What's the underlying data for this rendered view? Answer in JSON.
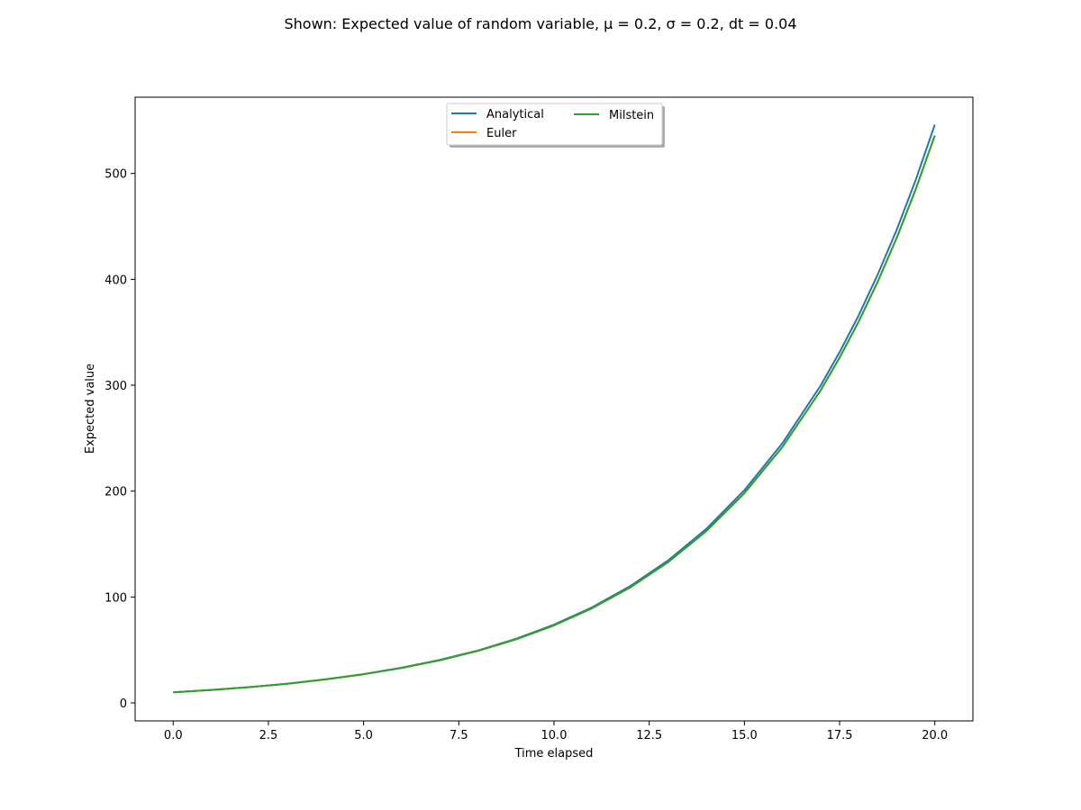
{
  "chart_data": {
    "type": "line",
    "title": "Shown: Expected value of random variable, μ = 0.2, σ = 0.2, dt = 0.04",
    "xlabel": "Time elapsed",
    "ylabel": "Expected value",
    "xlim": [
      -1.0,
      21.0
    ],
    "ylim": [
      -17,
      572
    ],
    "xticks": [
      0.0,
      2.5,
      5.0,
      7.5,
      10.0,
      12.5,
      15.0,
      17.5,
      20.0
    ],
    "xtick_labels": [
      "0.0",
      "2.5",
      "5.0",
      "7.5",
      "10.0",
      "12.5",
      "15.0",
      "17.5",
      "20.0"
    ],
    "yticks": [
      0,
      100,
      200,
      300,
      400,
      500
    ],
    "ytick_labels": [
      "0",
      "100",
      "200",
      "300",
      "400",
      "500"
    ],
    "grid": false,
    "legend_position": "upper-center",
    "legend_columns": 2,
    "series": [
      {
        "name": "Analytical",
        "color": "#1f77b4",
        "x": [
          0,
          1,
          2,
          3,
          4,
          5,
          6,
          7,
          8,
          9,
          10,
          11,
          12,
          13,
          14,
          15,
          16,
          17,
          17.5,
          18,
          18.5,
          19,
          19.5,
          20
        ],
        "y": [
          10.0,
          12.2,
          14.9,
          18.2,
          22.3,
          27.2,
          33.2,
          40.6,
          49.5,
          60.5,
          73.9,
          90.3,
          110.2,
          134.6,
          164.4,
          200.9,
          245.3,
          299.6,
          331.2,
          366.0,
          404.5,
          447.0,
          494.1,
          546.0
        ]
      },
      {
        "name": "Euler",
        "color": "#ff7f0e",
        "x": [
          0,
          1,
          2,
          3,
          4,
          5,
          6,
          7,
          8,
          9,
          10,
          11,
          12,
          13,
          14,
          15,
          16,
          17,
          17.5,
          18,
          18.5,
          19,
          19.5,
          20
        ],
        "y": [
          10.0,
          12.2,
          14.9,
          18.1,
          22.2,
          27.0,
          33.0,
          40.3,
          49.1,
          60.0,
          73.2,
          89.4,
          109.0,
          133.0,
          162.3,
          198.1,
          241.7,
          295.0,
          326.0,
          360.1,
          397.7,
          439.3,
          485.2,
          535.8
        ]
      },
      {
        "name": "Milstein",
        "color": "#2ca02c",
        "x": [
          0,
          1,
          2,
          3,
          4,
          5,
          6,
          7,
          8,
          9,
          10,
          11,
          12,
          13,
          14,
          15,
          16,
          17,
          17.5,
          18,
          18.5,
          19,
          19.5,
          20
        ],
        "y": [
          10.0,
          12.2,
          14.9,
          18.1,
          22.2,
          27.0,
          33.0,
          40.3,
          49.1,
          60.0,
          73.2,
          89.4,
          109.0,
          133.0,
          162.3,
          198.1,
          241.7,
          295.0,
          326.0,
          360.1,
          397.7,
          439.3,
          485.2,
          535.8
        ]
      }
    ]
  }
}
